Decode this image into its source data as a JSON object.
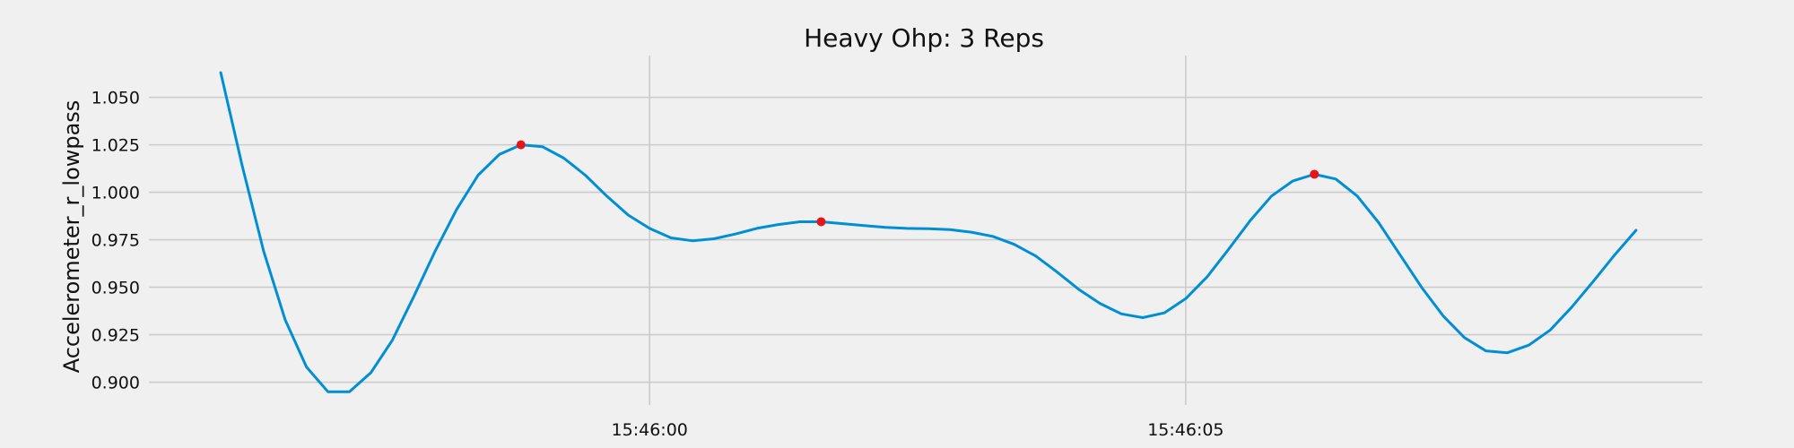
{
  "chart_data": {
    "type": "line",
    "title": "Heavy Ohp: 3 Reps",
    "xlabel": "",
    "ylabel": "Accelerometer_r_lowpass",
    "x_tick_labels": [
      "15:46:00",
      "15:46:05"
    ],
    "x_ticks_seconds_after_15_45_00": [
      60,
      65
    ],
    "y_ticks": [
      0.9,
      0.925,
      0.95,
      0.975,
      1.0,
      1.025,
      1.05
    ],
    "y_tick_labels": [
      "0.900",
      "0.925",
      "0.950",
      "0.975",
      "1.000",
      "1.025",
      "1.050"
    ],
    "xlim_seconds_after_15_45_00": [
      55.33,
      69.82
    ],
    "ylim": [
      0.888,
      1.072
    ],
    "grid": true,
    "series": [
      {
        "x_seconds_after_15_45_00": [
          56.0,
          56.2,
          56.4,
          56.6,
          56.8,
          57.0,
          57.2,
          57.4,
          57.6,
          57.8,
          58.0,
          58.2,
          58.4,
          58.6,
          58.8,
          59.0,
          59.2,
          59.4,
          59.6,
          59.8,
          60.0,
          60.2,
          60.4,
          60.6,
          60.8,
          61.0,
          61.2,
          61.4,
          61.6,
          61.8,
          62.0,
          62.2,
          62.4,
          62.6,
          62.8,
          63.0,
          63.2,
          63.4,
          63.6,
          63.8,
          64.0,
          64.2,
          64.4,
          64.6,
          64.8,
          65.0,
          65.2,
          65.4,
          65.6,
          65.8,
          66.0,
          66.2,
          66.4,
          66.6,
          66.8,
          67.0,
          67.2,
          67.4,
          67.6,
          67.8,
          68.0,
          68.2,
          68.4,
          68.6,
          68.8,
          69.0,
          69.2
        ],
        "y": [
          1.063,
          1.014,
          0.969,
          0.933,
          0.908,
          0.895,
          0.895,
          0.905,
          0.922,
          0.945,
          0.969,
          0.991,
          1.009,
          1.02,
          1.025,
          1.024,
          1.018,
          1.009,
          0.998,
          0.988,
          0.981,
          0.976,
          0.9745,
          0.9755,
          0.978,
          0.981,
          0.983,
          0.9845,
          0.9845,
          0.9835,
          0.9825,
          0.9815,
          0.981,
          0.9808,
          0.9804,
          0.979,
          0.9768,
          0.9726,
          0.9665,
          0.958,
          0.949,
          0.9415,
          0.936,
          0.934,
          0.9365,
          0.944,
          0.9555,
          0.97,
          0.985,
          0.998,
          1.006,
          1.0095,
          1.007,
          0.998,
          0.984,
          0.967,
          0.95,
          0.935,
          0.9235,
          0.9165,
          0.9155,
          0.9195,
          0.9275,
          0.9395,
          0.953,
          0.967,
          0.98
        ],
        "color": "#008fd5"
      }
    ],
    "markers": {
      "color": "#e5161a",
      "x_seconds_after_15_45_00": [
        58.8,
        61.6,
        66.2
      ],
      "y": [
        1.025,
        0.9845,
        1.0095
      ]
    }
  }
}
